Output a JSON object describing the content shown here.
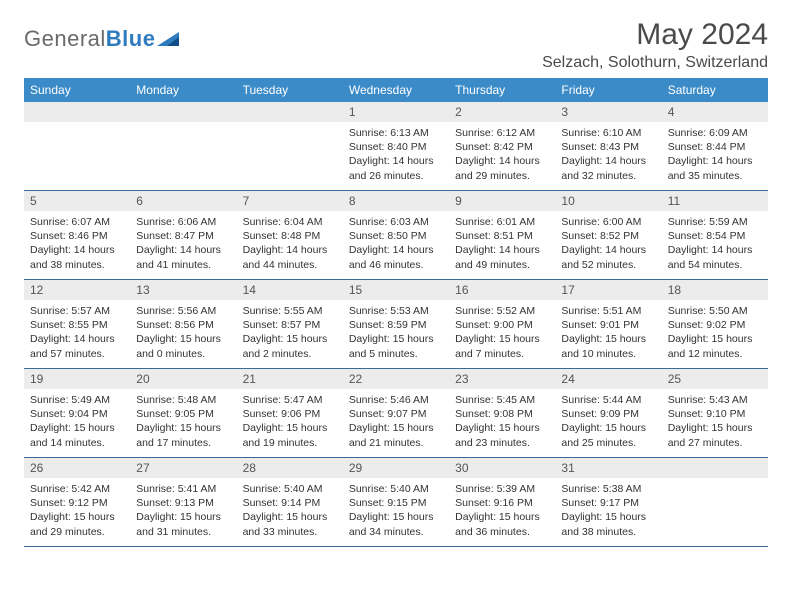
{
  "brand": {
    "part1": "General",
    "part2": "Blue"
  },
  "title": "May 2024",
  "location": "Selzach, Solothurn, Switzerland",
  "colors": {
    "header_bg": "#3b8bc8",
    "header_text": "#ffffff",
    "daynum_bg": "#ececec",
    "week_border": "#3b6a99",
    "title_color": "#4a4a4a"
  },
  "daynames": [
    "Sunday",
    "Monday",
    "Tuesday",
    "Wednesday",
    "Thursday",
    "Friday",
    "Saturday"
  ],
  "weeks": [
    [
      {
        "num": "",
        "sunrise": "",
        "sunset": "",
        "daylight": ""
      },
      {
        "num": "",
        "sunrise": "",
        "sunset": "",
        "daylight": ""
      },
      {
        "num": "",
        "sunrise": "",
        "sunset": "",
        "daylight": ""
      },
      {
        "num": "1",
        "sunrise": "Sunrise: 6:13 AM",
        "sunset": "Sunset: 8:40 PM",
        "daylight": "Daylight: 14 hours and 26 minutes."
      },
      {
        "num": "2",
        "sunrise": "Sunrise: 6:12 AM",
        "sunset": "Sunset: 8:42 PM",
        "daylight": "Daylight: 14 hours and 29 minutes."
      },
      {
        "num": "3",
        "sunrise": "Sunrise: 6:10 AM",
        "sunset": "Sunset: 8:43 PM",
        "daylight": "Daylight: 14 hours and 32 minutes."
      },
      {
        "num": "4",
        "sunrise": "Sunrise: 6:09 AM",
        "sunset": "Sunset: 8:44 PM",
        "daylight": "Daylight: 14 hours and 35 minutes."
      }
    ],
    [
      {
        "num": "5",
        "sunrise": "Sunrise: 6:07 AM",
        "sunset": "Sunset: 8:46 PM",
        "daylight": "Daylight: 14 hours and 38 minutes."
      },
      {
        "num": "6",
        "sunrise": "Sunrise: 6:06 AM",
        "sunset": "Sunset: 8:47 PM",
        "daylight": "Daylight: 14 hours and 41 minutes."
      },
      {
        "num": "7",
        "sunrise": "Sunrise: 6:04 AM",
        "sunset": "Sunset: 8:48 PM",
        "daylight": "Daylight: 14 hours and 44 minutes."
      },
      {
        "num": "8",
        "sunrise": "Sunrise: 6:03 AM",
        "sunset": "Sunset: 8:50 PM",
        "daylight": "Daylight: 14 hours and 46 minutes."
      },
      {
        "num": "9",
        "sunrise": "Sunrise: 6:01 AM",
        "sunset": "Sunset: 8:51 PM",
        "daylight": "Daylight: 14 hours and 49 minutes."
      },
      {
        "num": "10",
        "sunrise": "Sunrise: 6:00 AM",
        "sunset": "Sunset: 8:52 PM",
        "daylight": "Daylight: 14 hours and 52 minutes."
      },
      {
        "num": "11",
        "sunrise": "Sunrise: 5:59 AM",
        "sunset": "Sunset: 8:54 PM",
        "daylight": "Daylight: 14 hours and 54 minutes."
      }
    ],
    [
      {
        "num": "12",
        "sunrise": "Sunrise: 5:57 AM",
        "sunset": "Sunset: 8:55 PM",
        "daylight": "Daylight: 14 hours and 57 minutes."
      },
      {
        "num": "13",
        "sunrise": "Sunrise: 5:56 AM",
        "sunset": "Sunset: 8:56 PM",
        "daylight": "Daylight: 15 hours and 0 minutes."
      },
      {
        "num": "14",
        "sunrise": "Sunrise: 5:55 AM",
        "sunset": "Sunset: 8:57 PM",
        "daylight": "Daylight: 15 hours and 2 minutes."
      },
      {
        "num": "15",
        "sunrise": "Sunrise: 5:53 AM",
        "sunset": "Sunset: 8:59 PM",
        "daylight": "Daylight: 15 hours and 5 minutes."
      },
      {
        "num": "16",
        "sunrise": "Sunrise: 5:52 AM",
        "sunset": "Sunset: 9:00 PM",
        "daylight": "Daylight: 15 hours and 7 minutes."
      },
      {
        "num": "17",
        "sunrise": "Sunrise: 5:51 AM",
        "sunset": "Sunset: 9:01 PM",
        "daylight": "Daylight: 15 hours and 10 minutes."
      },
      {
        "num": "18",
        "sunrise": "Sunrise: 5:50 AM",
        "sunset": "Sunset: 9:02 PM",
        "daylight": "Daylight: 15 hours and 12 minutes."
      }
    ],
    [
      {
        "num": "19",
        "sunrise": "Sunrise: 5:49 AM",
        "sunset": "Sunset: 9:04 PM",
        "daylight": "Daylight: 15 hours and 14 minutes."
      },
      {
        "num": "20",
        "sunrise": "Sunrise: 5:48 AM",
        "sunset": "Sunset: 9:05 PM",
        "daylight": "Daylight: 15 hours and 17 minutes."
      },
      {
        "num": "21",
        "sunrise": "Sunrise: 5:47 AM",
        "sunset": "Sunset: 9:06 PM",
        "daylight": "Daylight: 15 hours and 19 minutes."
      },
      {
        "num": "22",
        "sunrise": "Sunrise: 5:46 AM",
        "sunset": "Sunset: 9:07 PM",
        "daylight": "Daylight: 15 hours and 21 minutes."
      },
      {
        "num": "23",
        "sunrise": "Sunrise: 5:45 AM",
        "sunset": "Sunset: 9:08 PM",
        "daylight": "Daylight: 15 hours and 23 minutes."
      },
      {
        "num": "24",
        "sunrise": "Sunrise: 5:44 AM",
        "sunset": "Sunset: 9:09 PM",
        "daylight": "Daylight: 15 hours and 25 minutes."
      },
      {
        "num": "25",
        "sunrise": "Sunrise: 5:43 AM",
        "sunset": "Sunset: 9:10 PM",
        "daylight": "Daylight: 15 hours and 27 minutes."
      }
    ],
    [
      {
        "num": "26",
        "sunrise": "Sunrise: 5:42 AM",
        "sunset": "Sunset: 9:12 PM",
        "daylight": "Daylight: 15 hours and 29 minutes."
      },
      {
        "num": "27",
        "sunrise": "Sunrise: 5:41 AM",
        "sunset": "Sunset: 9:13 PM",
        "daylight": "Daylight: 15 hours and 31 minutes."
      },
      {
        "num": "28",
        "sunrise": "Sunrise: 5:40 AM",
        "sunset": "Sunset: 9:14 PM",
        "daylight": "Daylight: 15 hours and 33 minutes."
      },
      {
        "num": "29",
        "sunrise": "Sunrise: 5:40 AM",
        "sunset": "Sunset: 9:15 PM",
        "daylight": "Daylight: 15 hours and 34 minutes."
      },
      {
        "num": "30",
        "sunrise": "Sunrise: 5:39 AM",
        "sunset": "Sunset: 9:16 PM",
        "daylight": "Daylight: 15 hours and 36 minutes."
      },
      {
        "num": "31",
        "sunrise": "Sunrise: 5:38 AM",
        "sunset": "Sunset: 9:17 PM",
        "daylight": "Daylight: 15 hours and 38 minutes."
      },
      {
        "num": "",
        "sunrise": "",
        "sunset": "",
        "daylight": ""
      }
    ]
  ]
}
